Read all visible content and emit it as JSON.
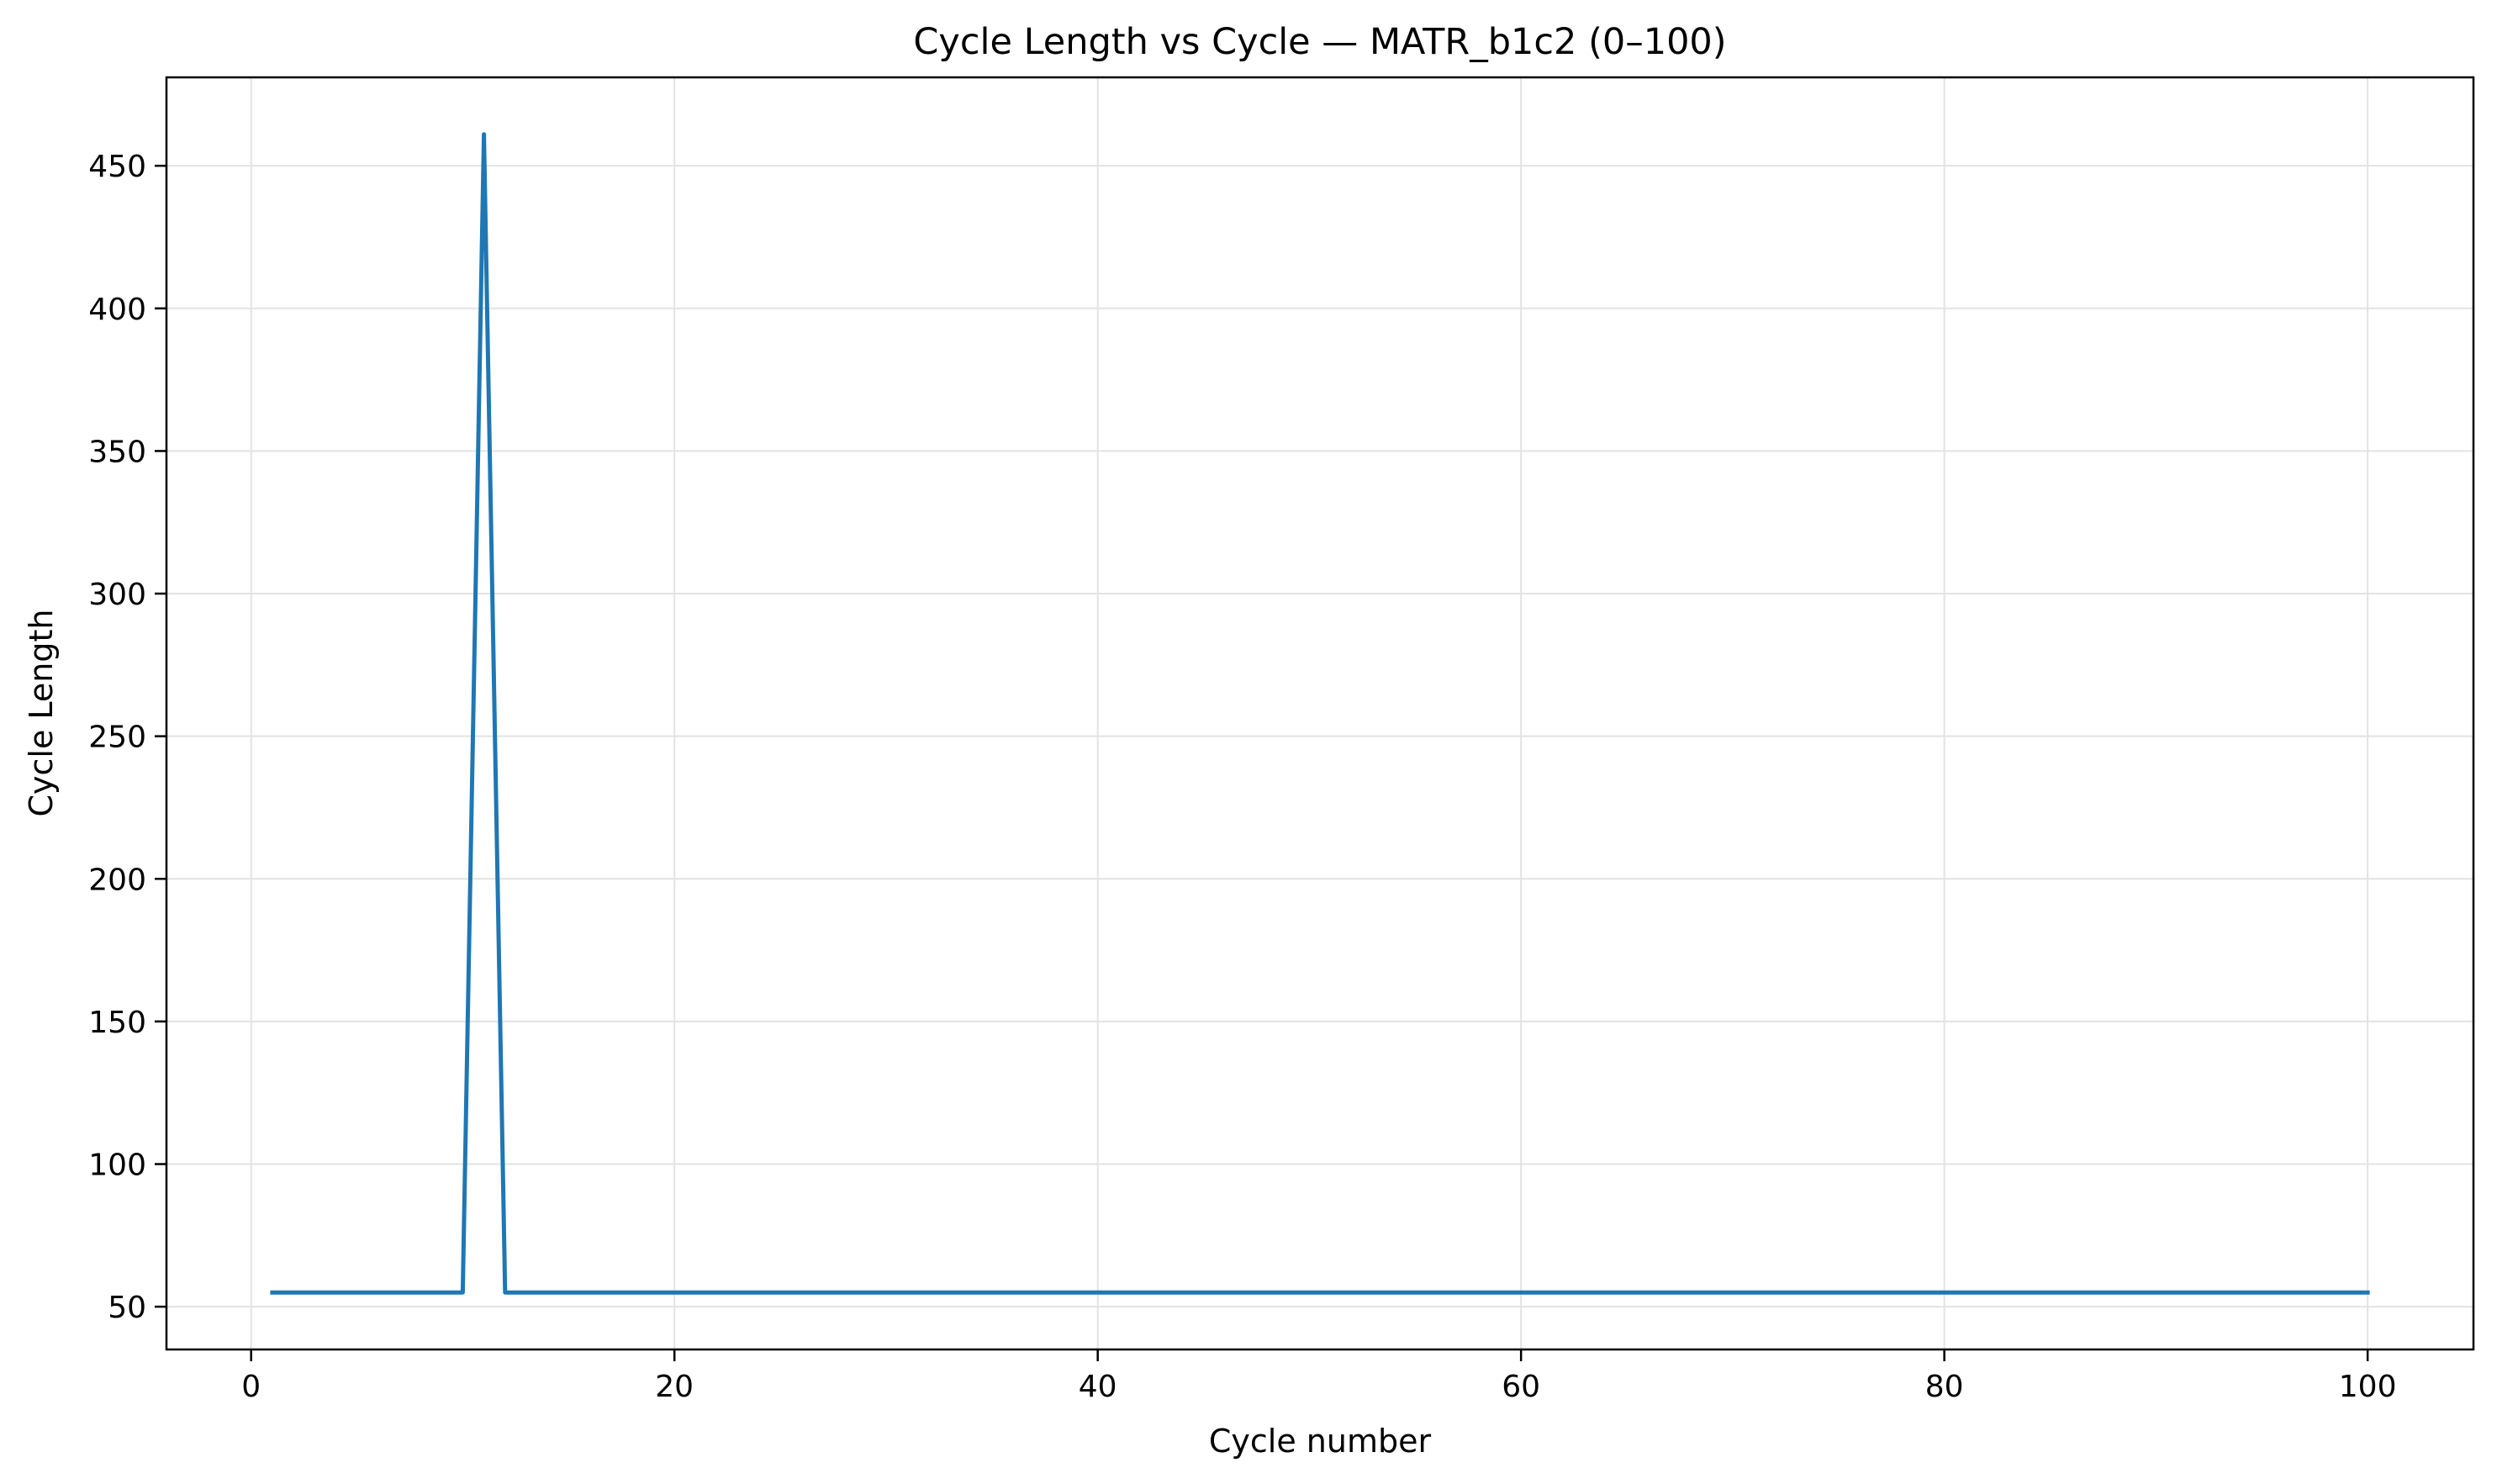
{
  "chart_data": {
    "type": "line",
    "title": "Cycle Length vs Cycle — MATR_b1c2 (0–100)",
    "xlabel": "Cycle number",
    "ylabel": "Cycle Length",
    "xlim": [
      -4,
      105
    ],
    "ylim": [
      35,
      481
    ],
    "xticks": [
      0,
      20,
      40,
      60,
      80,
      100
    ],
    "yticks": [
      50,
      100,
      150,
      200,
      250,
      300,
      350,
      400,
      450
    ],
    "grid": true,
    "color": "#1f77b4",
    "series": [
      {
        "x": [
          1,
          2,
          3,
          4,
          5,
          6,
          7,
          8,
          9,
          10,
          11,
          12,
          13,
          14,
          15,
          16,
          17,
          18,
          19,
          20,
          21,
          22,
          23,
          24,
          25,
          26,
          27,
          28,
          29,
          30,
          31,
          32,
          33,
          34,
          35,
          36,
          37,
          38,
          39,
          40,
          41,
          42,
          43,
          44,
          45,
          46,
          47,
          48,
          49,
          50,
          51,
          52,
          53,
          54,
          55,
          56,
          57,
          58,
          59,
          60,
          61,
          62,
          63,
          64,
          65,
          66,
          67,
          68,
          69,
          70,
          71,
          72,
          73,
          74,
          75,
          76,
          77,
          78,
          79,
          80,
          81,
          82,
          83,
          84,
          85,
          86,
          87,
          88,
          89,
          90,
          91,
          92,
          93,
          94,
          95,
          96,
          97,
          98,
          99,
          100
        ],
        "y": [
          55,
          55,
          55,
          55,
          55,
          55,
          55,
          55,
          55,
          55,
          461,
          55,
          55,
          55,
          55,
          55,
          55,
          55,
          55,
          55,
          55,
          55,
          55,
          55,
          55,
          55,
          55,
          55,
          55,
          55,
          55,
          55,
          55,
          55,
          55,
          55,
          55,
          55,
          55,
          55,
          55,
          55,
          55,
          55,
          55,
          55,
          55,
          55,
          55,
          55,
          55,
          55,
          55,
          55,
          55,
          55,
          55,
          55,
          55,
          55,
          55,
          55,
          55,
          55,
          55,
          55,
          55,
          55,
          55,
          55,
          55,
          55,
          55,
          55,
          55,
          55,
          55,
          55,
          55,
          55,
          55,
          55,
          55,
          55,
          55,
          55,
          55,
          55,
          55,
          55,
          55,
          55,
          55,
          55,
          55,
          55,
          55,
          55,
          55,
          55
        ]
      }
    ]
  }
}
